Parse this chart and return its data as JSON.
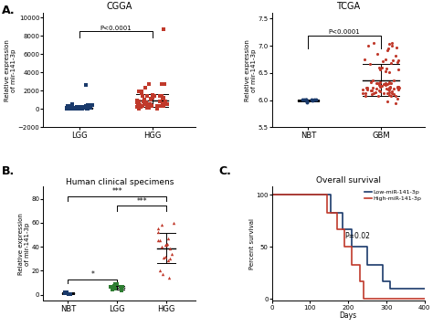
{
  "panel_A_CGGA": {
    "title": "CGGA",
    "xlabel_groups": [
      "LGG",
      "HGG"
    ],
    "ylabel": "Relative expression\nof mir-141-3p",
    "ylim": [
      -2000,
      10500
    ],
    "yticks": [
      -2000,
      0,
      2000,
      4000,
      6000,
      8000,
      10000
    ],
    "pval_text": "P<0.0001",
    "lgg_color": "#1a3a6b",
    "hgg_color": "#c0392b"
  },
  "panel_A_TCGA": {
    "title": "TCGA",
    "xlabel_groups": [
      "NBT",
      "GBM"
    ],
    "ylabel": "Relative expression\nof mir-141-3p",
    "ylim": [
      5.5,
      7.6
    ],
    "yticks": [
      5.5,
      6.0,
      6.5,
      7.0,
      7.5
    ],
    "pval_text": "P<0.0001",
    "nbt_color": "#1a3a6b",
    "gbm_color": "#c0392b"
  },
  "panel_B": {
    "title": "Human clinical specimens",
    "xlabel_groups": [
      "NBT",
      "LGG",
      "HGG"
    ],
    "ylabel": "Relative expression\nof mir-141-3p",
    "ylim": [
      -5,
      90
    ],
    "yticks": [
      0,
      20,
      40,
      60,
      80
    ],
    "nbt_color": "#1a3a6b",
    "lgg_color": "#2e7d32",
    "hgg_color": "#c0392b",
    "sig_NBT_HGG": "***",
    "sig_LGG_HGG": "***",
    "sig_NBT_LGG": "*"
  },
  "panel_C": {
    "title": "Overall survival",
    "xlabel": "Days",
    "ylabel": "Percent survival",
    "pval_text": "P=0.02",
    "low_color": "#1a3a6b",
    "high_color": "#c0392b",
    "low_label": "Low-miR-141-3p",
    "high_label": "High-miR-141-3p",
    "xlim": [
      0,
      400
    ],
    "ylim": [
      -2,
      108
    ],
    "xticks": [
      0,
      100,
      200,
      300,
      400
    ],
    "yticks": [
      0,
      50,
      100
    ]
  },
  "background_color": "#ffffff"
}
